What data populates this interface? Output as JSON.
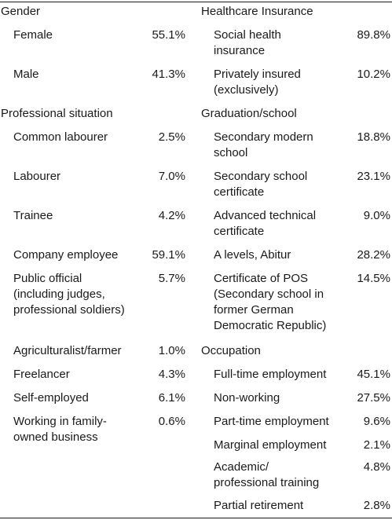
{
  "left": {
    "sections": [
      {
        "heading": "Gender",
        "rows": [
          {
            "label": "Female",
            "value": "55.1%"
          },
          {
            "label": "Male",
            "value": "41.3%"
          }
        ]
      },
      {
        "heading": "Professional situation",
        "rows": [
          {
            "label": "Common labourer",
            "value": "2.5%"
          },
          {
            "label": "Labourer",
            "value": "7.0%"
          },
          {
            "label": "Trainee",
            "value": "4.2%"
          },
          {
            "label": "Company employee",
            "value": "59.1%"
          },
          {
            "label": "Public official\n(including judges,\nprofessional soldiers)",
            "value": "5.7%"
          },
          {
            "label": "Agriculturalist/farmer",
            "value": "1.0%"
          },
          {
            "label": "Freelancer",
            "value": "4.3%"
          },
          {
            "label": "Self-employed",
            "value": "6.1%"
          },
          {
            "label": "Working in family-\nowned business",
            "value": "0.6%"
          }
        ]
      }
    ]
  },
  "right": {
    "sections": [
      {
        "heading": "Healthcare Insurance",
        "rows": [
          {
            "label": "Social health\ninsurance",
            "value": "89.8%"
          },
          {
            "label": "Privately insured\n(exclusively)",
            "value": "10.2%"
          }
        ]
      },
      {
        "heading": "Graduation/school",
        "rows": [
          {
            "label": "Secondary modern\nschool",
            "value": "18.8%"
          },
          {
            "label": "Secondary school\ncertificate",
            "value": "23.1%"
          },
          {
            "label": "Advanced technical\ncertificate",
            "value": "9.0%"
          },
          {
            "label": "A levels, Abitur",
            "value": "28.2%"
          },
          {
            "label": "Certificate of POS\n(Secondary school in\nformer German\nDemocratic Republic)",
            "value": "14.5%"
          }
        ]
      },
      {
        "heading": "Occupation",
        "rows": [
          {
            "label": "Full-time employment",
            "value": "45.1%"
          },
          {
            "label": "Non-working",
            "value": "27.5%"
          },
          {
            "label": "Part-time employment",
            "value": "9.6%"
          },
          {
            "label": "Marginal employment",
            "value": "2.1%"
          },
          {
            "label": "Academic/\nprofessional training",
            "value": "4.8%"
          },
          {
            "label": "Partial retirement",
            "value": "2.8%"
          }
        ]
      }
    ]
  }
}
